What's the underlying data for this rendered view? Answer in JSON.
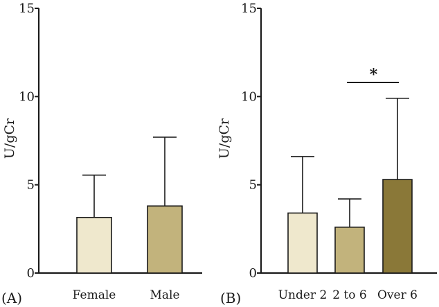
{
  "chart_data": [
    {
      "panel_label": "(A)",
      "type": "bar",
      "ylabel": "U/gCr",
      "ylim": [
        0,
        15
      ],
      "yticks": [
        "0",
        "5",
        "10",
        "15"
      ],
      "categories": [
        "Female",
        "Male"
      ],
      "values": [
        3.15,
        3.8
      ],
      "error_upper": [
        5.55,
        7.7
      ],
      "colors": [
        "#efe8cd",
        "#c2b37c"
      ]
    },
    {
      "panel_label": "(B)",
      "type": "bar",
      "ylabel": "U/gCr",
      "ylim": [
        0,
        15
      ],
      "yticks": [
        "0",
        "5",
        "10",
        "15"
      ],
      "categories": [
        "Under 2",
        "2 to 6",
        "Over 6"
      ],
      "values": [
        3.4,
        2.6,
        5.3
      ],
      "error_upper": [
        6.6,
        4.2,
        9.9
      ],
      "colors": [
        "#efe8cd",
        "#c2b37c",
        "#8a7838"
      ],
      "significance": {
        "label": "*",
        "between": [
          "2 to 6",
          "Over 6"
        ],
        "level": 10.8
      }
    }
  ]
}
